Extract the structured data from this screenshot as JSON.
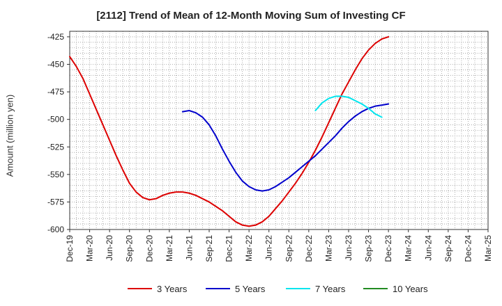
{
  "chart_data": {
    "type": "line",
    "title": "[2112]  Trend of Mean of 12-Month Moving Sum of Investing CF",
    "xlabel": "",
    "ylabel": "Amount (million yen)",
    "ylim": [
      -600,
      -420
    ],
    "yticks": [
      -425,
      -450,
      -475,
      -500,
      -525,
      -550,
      -575,
      -600
    ],
    "xticks": [
      "Dec-19",
      "Mar-20",
      "Jun-20",
      "Sep-20",
      "Dec-20",
      "Mar-21",
      "Jun-21",
      "Sep-21",
      "Dec-21",
      "Mar-22",
      "Jun-22",
      "Sep-22",
      "Dec-22",
      "Mar-23",
      "Jun-23",
      "Sep-23",
      "Dec-23",
      "Mar-24",
      "Jun-24",
      "Sep-24",
      "Dec-24",
      "Mar-25"
    ],
    "grid": true,
    "legend_position": "bottom",
    "series": [
      {
        "name": "3 Years",
        "color": "#dd0000",
        "points": [
          [
            0,
            -443
          ],
          [
            1,
            -452
          ],
          [
            2,
            -463
          ],
          [
            3,
            -477
          ],
          [
            4,
            -491
          ],
          [
            5,
            -505
          ],
          [
            6,
            -519
          ],
          [
            7,
            -533
          ],
          [
            8,
            -546
          ],
          [
            9,
            -558
          ],
          [
            10,
            -566
          ],
          [
            11,
            -571
          ],
          [
            12,
            -573
          ],
          [
            13,
            -572
          ],
          [
            14,
            -569
          ],
          [
            15,
            -567
          ],
          [
            16,
            -566
          ],
          [
            17,
            -566
          ],
          [
            18,
            -567
          ],
          [
            19,
            -569
          ],
          [
            20,
            -572
          ],
          [
            21,
            -575
          ],
          [
            22,
            -579
          ],
          [
            23,
            -583
          ],
          [
            24,
            -588
          ],
          [
            25,
            -593
          ],
          [
            26,
            -596
          ],
          [
            27,
            -597
          ],
          [
            28,
            -596
          ],
          [
            29,
            -593
          ],
          [
            30,
            -588
          ],
          [
            31,
            -581
          ],
          [
            32,
            -574
          ],
          [
            33,
            -566
          ],
          [
            34,
            -558
          ],
          [
            35,
            -549
          ],
          [
            36,
            -539
          ],
          [
            37,
            -528
          ],
          [
            38,
            -516
          ],
          [
            39,
            -503
          ],
          [
            40,
            -490
          ],
          [
            41,
            -477
          ],
          [
            42,
            -466
          ],
          [
            43,
            -455
          ],
          [
            44,
            -445
          ],
          [
            45,
            -437
          ],
          [
            46,
            -431
          ],
          [
            47,
            -427
          ],
          [
            48,
            -425
          ]
        ]
      },
      {
        "name": "5 Years",
        "color": "#0000cc",
        "points": [
          [
            17,
            -493
          ],
          [
            18,
            -492
          ],
          [
            19,
            -494
          ],
          [
            20,
            -498
          ],
          [
            21,
            -505
          ],
          [
            22,
            -515
          ],
          [
            23,
            -527
          ],
          [
            24,
            -538
          ],
          [
            25,
            -548
          ],
          [
            26,
            -556
          ],
          [
            27,
            -561
          ],
          [
            28,
            -564
          ],
          [
            29,
            -565
          ],
          [
            30,
            -564
          ],
          [
            31,
            -561
          ],
          [
            32,
            -557
          ],
          [
            33,
            -553
          ],
          [
            34,
            -548
          ],
          [
            35,
            -543
          ],
          [
            36,
            -538
          ],
          [
            37,
            -533
          ],
          [
            38,
            -527
          ],
          [
            39,
            -521
          ],
          [
            40,
            -515
          ],
          [
            41,
            -508
          ],
          [
            42,
            -502
          ],
          [
            43,
            -497
          ],
          [
            44,
            -493
          ],
          [
            45,
            -490
          ],
          [
            46,
            -488
          ],
          [
            47,
            -487
          ],
          [
            48,
            -486
          ]
        ]
      },
      {
        "name": "7 Years",
        "color": "#00e5ee",
        "points": [
          [
            37,
            -492
          ],
          [
            38,
            -485
          ],
          [
            39,
            -481
          ],
          [
            40,
            -479
          ],
          [
            41,
            -479
          ],
          [
            42,
            -480
          ],
          [
            43,
            -483
          ],
          [
            44,
            -486
          ],
          [
            45,
            -490
          ],
          [
            46,
            -495
          ],
          [
            47,
            -498
          ]
        ]
      },
      {
        "name": "10 Years",
        "color": "#228b22",
        "points": []
      }
    ]
  }
}
